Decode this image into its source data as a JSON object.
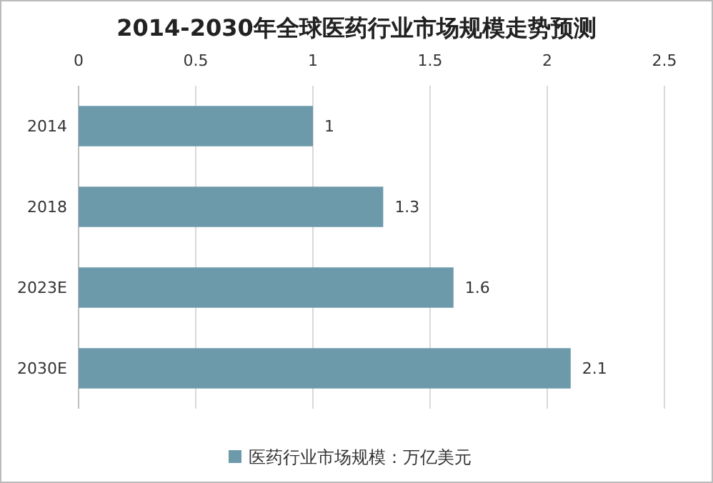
{
  "chart_data": {
    "type": "bar",
    "orientation": "horizontal",
    "title": "2014-2030年全球医药行业市场规模走势预测",
    "categories": [
      "2014",
      "2018",
      "2023E",
      "2030E"
    ],
    "series": [
      {
        "name": "医药行业市场规模：万亿美元",
        "color": "#6d9aab",
        "values": [
          1,
          1.3,
          1.6,
          2.1
        ]
      }
    ],
    "xlim": [
      0,
      2.5
    ],
    "xticks": [
      0,
      0.5,
      1,
      1.5,
      2,
      2.5
    ],
    "grid": "x",
    "legend": "bottom",
    "data_labels": true
  }
}
